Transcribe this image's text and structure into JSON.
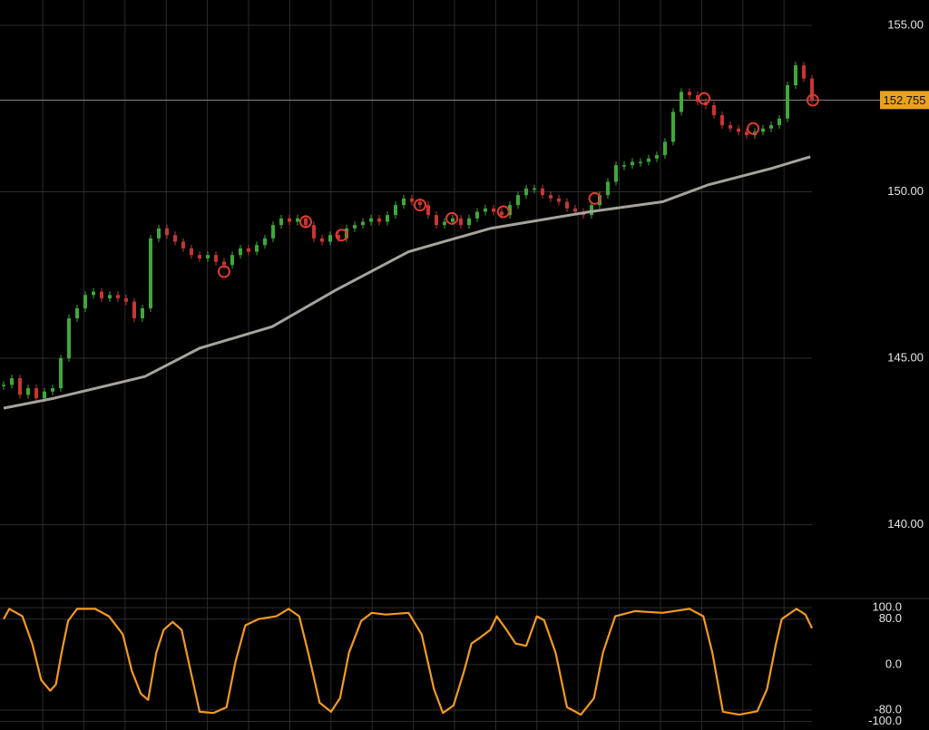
{
  "chart_data": [
    {
      "type": "candle",
      "ylim": [
        137.92,
        155.76
      ],
      "xlim": [
        0,
        99
      ],
      "yticks": [
        {
          "value": 155,
          "label": "155.00"
        },
        {
          "value": 150,
          "label": "150.00"
        },
        {
          "value": 145,
          "label": "145.00"
        },
        {
          "value": 140,
          "label": "140.00"
        }
      ],
      "grid": true,
      "current_price": 152.755,
      "current_color": "#e8a21c",
      "series": [
        {
          "type": "candle",
          "up_color": "#3fa83a",
          "down_color": "#c93434",
          "x": [
            0,
            1,
            2,
            3,
            4,
            5,
            6,
            7,
            8,
            9,
            10,
            11,
            12,
            13,
            14,
            15,
            16,
            17,
            18,
            19,
            20,
            21,
            22,
            23,
            24,
            25,
            26,
            27,
            28,
            29,
            30,
            31,
            32,
            33,
            34,
            35,
            36,
            37,
            38,
            39,
            40,
            41,
            42,
            43,
            44,
            45,
            46,
            47,
            48,
            49,
            50,
            51,
            52,
            53,
            54,
            55,
            56,
            57,
            58,
            59,
            60,
            61,
            62,
            63,
            64,
            65,
            66,
            67,
            68,
            69,
            70,
            71,
            72,
            73,
            74,
            75,
            76,
            77,
            78,
            79,
            80,
            81,
            82,
            83,
            84,
            85,
            86,
            87,
            88,
            89,
            90,
            91,
            92,
            93,
            94,
            95,
            96,
            97,
            98,
            99
          ],
          "values": [
            144.2,
            144.4,
            143.9,
            144.1,
            143.8,
            144.0,
            144.1,
            145.0,
            146.2,
            146.5,
            146.9,
            147.0,
            146.8,
            146.9,
            146.8,
            146.7,
            146.2,
            146.5,
            148.6,
            148.9,
            148.7,
            148.5,
            148.3,
            148.1,
            148.0,
            148.1,
            147.9,
            147.8,
            148.1,
            148.3,
            148.2,
            148.4,
            148.6,
            149.0,
            149.2,
            149.1,
            149.2,
            149.0,
            148.6,
            148.5,
            148.7,
            148.6,
            148.9,
            149.0,
            149.1,
            149.2,
            149.1,
            149.3,
            149.6,
            149.8,
            149.7,
            149.6,
            149.3,
            149.0,
            149.1,
            149.2,
            149.0,
            149.2,
            149.4,
            149.5,
            149.4,
            149.3,
            149.6,
            149.9,
            150.1,
            150.1,
            149.9,
            149.8,
            149.7,
            149.5,
            149.4,
            149.3,
            149.6,
            149.9,
            150.3,
            150.8,
            150.8,
            150.9,
            150.9,
            151.0,
            151.1,
            151.5,
            152.4,
            153.0,
            152.9,
            152.7,
            152.6,
            152.3,
            152.0,
            151.9,
            151.8,
            151.7,
            151.8,
            151.9,
            152.0,
            152.2,
            153.2,
            153.8,
            153.4,
            152.755
          ]
        },
        {
          "type": "line",
          "color": "#a6a39c",
          "x": [
            0,
            6.2,
            17.3,
            24,
            32.9,
            40.7,
            49.6,
            59.6,
            71.8,
            80.7,
            86.2,
            94,
            98.8
          ],
          "values": [
            143.5,
            143.8,
            144.45,
            145.3,
            145.95,
            147.05,
            148.2,
            148.9,
            149.4,
            149.7,
            150.2,
            150.7,
            151.05
          ]
        },
        {
          "type": "scatter",
          "color": "#e23b2e",
          "x": [
            27,
            37,
            41.4,
            51,
            54.9,
            61.2,
            72.4,
            85.8,
            91.8,
            99.1
          ],
          "values": [
            147.6,
            149.1,
            148.7,
            149.6,
            149.2,
            149.4,
            149.8,
            152.8,
            151.9,
            152.75
          ]
        }
      ]
    },
    {
      "type": "line",
      "ylim": [
        -115,
        113
      ],
      "xlim": [
        0,
        99
      ],
      "yticks": [
        {
          "value": 100,
          "label": "100.0"
        },
        {
          "value": 80,
          "label": "80.0"
        },
        {
          "value": 0,
          "label": "0.0"
        },
        {
          "value": -80,
          "label": "-80.0"
        },
        {
          "value": -100,
          "label": "-100.0"
        }
      ],
      "grid": true,
      "series": [
        {
          "type": "line",
          "color": "#f39a1e",
          "x": [
            0,
            0.7,
            2.3,
            3.5,
            4.6,
            5.7,
            6.4,
            7.1,
            7.9,
            9,
            11.2,
            12.9,
            14.6,
            15.7,
            16.8,
            17.7,
            18.7,
            19.6,
            20.7,
            21.8,
            22.9,
            24,
            25.7,
            27.3,
            28.4,
            29.6,
            31.2,
            33.4,
            34.9,
            36.2,
            37.3,
            38.7,
            40.1,
            41.2,
            42.3,
            43.8,
            45.1,
            46.8,
            49.6,
            51.2,
            52.7,
            53.8,
            55.1,
            56.4,
            57.3,
            58.4,
            59.6,
            60.4,
            61.6,
            62.7,
            64,
            65.3,
            66.2,
            67.6,
            69,
            70.7,
            72.3,
            73.4,
            74.9,
            77.3,
            80.7,
            84,
            85.7,
            86.8,
            88.1,
            90.1,
            92.3,
            93.5,
            94.6,
            95.3,
            97.1,
            98.2,
            99
          ],
          "values": [
            80,
            98,
            85,
            37,
            -27,
            -46,
            -35,
            21,
            77,
            98,
            98,
            85,
            53,
            -11,
            -51,
            -62,
            21,
            61,
            75,
            61,
            -11,
            -83,
            -85,
            -75,
            5,
            69,
            80,
            85,
            98,
            85,
            21,
            -67,
            -83,
            -59,
            21,
            77,
            91,
            88,
            91,
            53,
            -43,
            -85,
            -72,
            -11,
            37,
            48,
            61,
            85,
            61,
            37,
            33,
            85,
            78,
            21,
            -75,
            -88,
            -59,
            21,
            85,
            94,
            91,
            98,
            85,
            21,
            -83,
            -88,
            -82,
            -43,
            37,
            80,
            98,
            88,
            64
          ]
        }
      ]
    }
  ]
}
